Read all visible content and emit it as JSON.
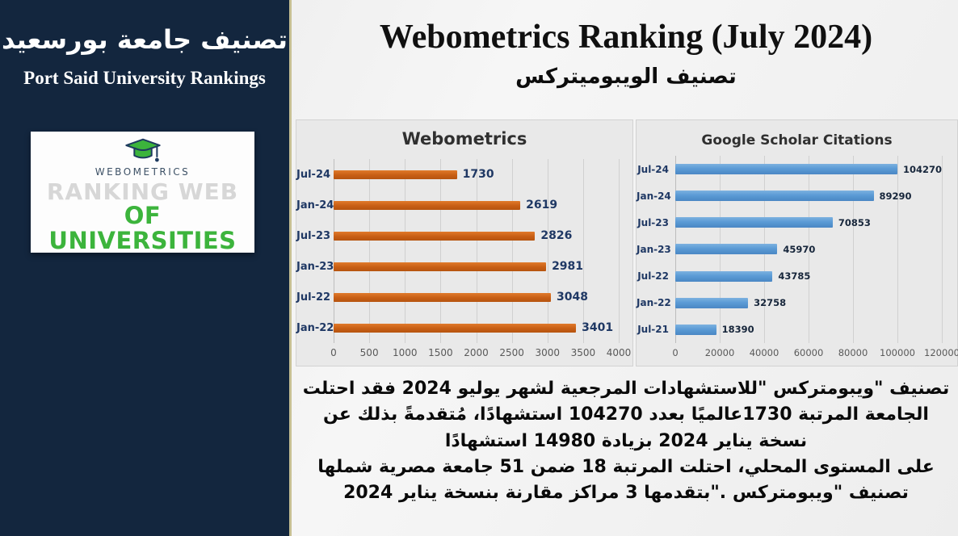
{
  "sidebar": {
    "title_ar": "تصنيف جامعة بورسعيد",
    "title_en": "Port Said University Rankings",
    "logo": {
      "brand": "WEBOMETRICS",
      "line1": "RANKING WEB",
      "line2": "OF UNIVERSITIES",
      "cap_green": "#3cb43c",
      "cap_navy": "#1d3a5f"
    }
  },
  "header": {
    "title": "Webometrics Ranking (July 2024)",
    "subtitle_ar": "تصنيف الويبوميتركس"
  },
  "chart_data": [
    {
      "type": "bar",
      "orientation": "horizontal",
      "title": "Webometrics",
      "categories": [
        "Jul-24",
        "Jan-24",
        "Jul-23",
        "Jan-23",
        "Jul-22",
        "Jan-22"
      ],
      "values": [
        1730,
        2619,
        2826,
        2981,
        3048,
        3401
      ],
      "xlim": [
        0,
        4000
      ],
      "xticks": [
        0,
        500,
        1000,
        1500,
        2000,
        2500,
        3000,
        3500,
        4000
      ],
      "grid": true,
      "legend": "none",
      "bar_color": "#c75e14",
      "label_color": "#1f3864"
    },
    {
      "type": "bar",
      "orientation": "horizontal",
      "title": "Google Scholar Citations",
      "categories": [
        "Jul-24",
        "Jan-24",
        "Jul-23",
        "Jan-23",
        "Jul-22",
        "Jan-22",
        "Jul-21"
      ],
      "values": [
        104270,
        89290,
        70853,
        45970,
        43785,
        32758,
        18390
      ],
      "xlim": [
        0,
        120000
      ],
      "xticks": [
        0,
        20000,
        40000,
        60000,
        80000,
        100000,
        120000
      ],
      "grid": true,
      "legend": "none",
      "bar_color": "#5b9bd5",
      "label_color": "#17263b"
    }
  ],
  "summary": {
    "lines": [
      "تصنيف \"ويبومتركس \"للاستشهادات المرجعية لشهر يوليو  2024 فقد احتلت",
      "الجامعة المرتبة  1730عالميًا بعدد  104270 استشهادًا، مُتقدمةً بذلك عن",
      "نسخة يناير  2024 بزيادة  14980 استشهادًا",
      "على المستوى المحلي، احتلت المرتبة  18 ضمن  51 جامعة مصرية شملها",
      "تصنيف \"ويبومتركس .\"بتقدمها  3 مراكز مقارنة بنسخة يناير  2024"
    ]
  },
  "colors": {
    "sidebar_bg": "#13263e",
    "sidebar_border": "#c6bf92",
    "chart_panel_bg": "#e9e9e9",
    "orange_bar": "#c75e14",
    "blue_bar": "#5b9bd5",
    "navy_label": "#1f3864",
    "tick_gray": "#595959"
  }
}
